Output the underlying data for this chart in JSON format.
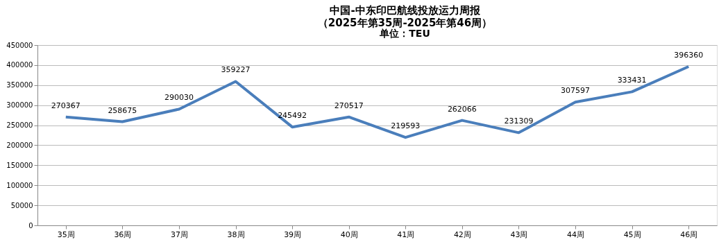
{
  "chart_data": {
    "type": "line",
    "title": [
      "中国-中东印巴航线投放运力周报",
      "（2025年第35周-2025年第46周）"
    ],
    "subtitle": "单位：TEU",
    "categories": [
      "35周",
      "36周",
      "37周",
      "38周",
      "39周",
      "40周",
      "41周",
      "42周",
      "43周",
      "44周",
      "45周",
      "46周"
    ],
    "series": [
      {
        "color": "#4a7ebb",
        "values": [
          270367,
          258675,
          290030,
          359227,
          245492,
          270517,
          219593,
          262066,
          231309,
          307597,
          333431,
          396360
        ]
      }
    ],
    "ylim": [
      0,
      450000
    ],
    "yticks": [
      0,
      50000,
      100000,
      150000,
      200000,
      250000,
      300000,
      350000,
      400000,
      450000
    ],
    "grid": "y",
    "marker": "none",
    "line_style": "solid",
    "data_labels": true
  }
}
